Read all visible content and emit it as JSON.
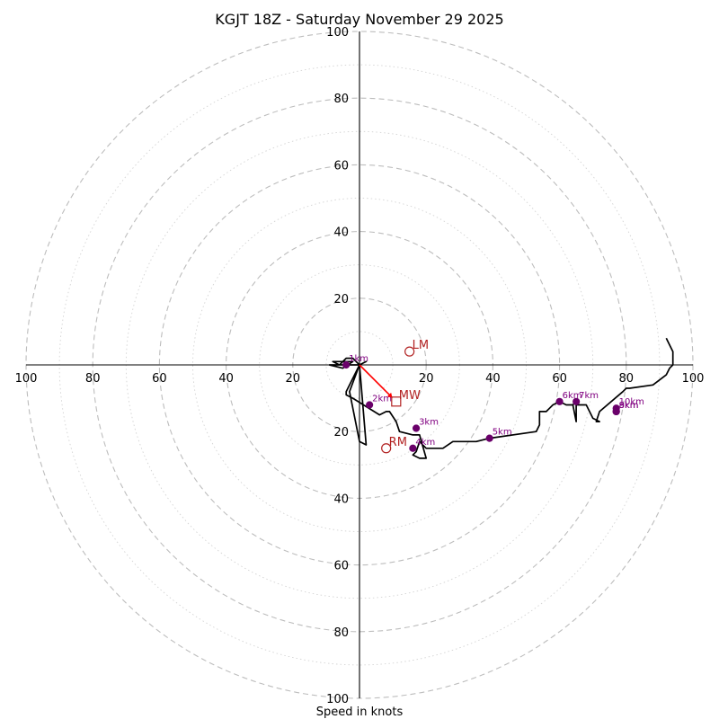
{
  "chart_data": {
    "type": "hodograph",
    "title": "KGJT 18Z - Saturday November 29 2025",
    "xlabel": "Speed in knots",
    "ylabel": "",
    "rmax": 100,
    "rings_major": [
      20,
      40,
      60,
      80,
      100
    ],
    "rings_minor": [
      10,
      30,
      50,
      70,
      90
    ],
    "tick_values": [
      20,
      40,
      60,
      80,
      100
    ],
    "grid": true,
    "trace_u": [
      92,
      94,
      94,
      93,
      92,
      88,
      81,
      80,
      79,
      72,
      71,
      72,
      70,
      68,
      65,
      65,
      64,
      64,
      65,
      64,
      62,
      60,
      58,
      57,
      56,
      54,
      54,
      53,
      39,
      35,
      32,
      30,
      28,
      25,
      24,
      20,
      18,
      17,
      16,
      18,
      20,
      18,
      16,
      12,
      11,
      9,
      8,
      6,
      -2,
      -4,
      -4,
      0,
      -2,
      -4,
      -6,
      -8,
      -2,
      -5,
      -9,
      0,
      2,
      0,
      -3,
      0,
      2,
      0
    ],
    "trace_v": [
      -8,
      -4,
      0,
      1,
      3,
      6,
      7,
      7,
      8,
      14,
      17,
      17,
      16,
      12,
      12,
      17,
      12,
      12,
      11,
      12,
      12,
      11,
      12,
      13,
      14,
      14,
      18,
      20,
      22,
      23,
      23,
      23,
      23,
      25,
      25,
      25,
      23,
      26,
      27,
      28,
      28,
      21,
      21,
      20,
      17,
      14,
      14,
      15,
      10,
      9,
      8,
      0,
      -2,
      -2,
      0,
      -1,
      -1,
      1,
      0,
      0,
      -1,
      0,
      8,
      23,
      24,
      0
    ],
    "height_markers": [
      {
        "label": "1km",
        "u": -4,
        "v": 0
      },
      {
        "label": "2km",
        "u": 3,
        "v": 12
      },
      {
        "label": "3km",
        "u": 17,
        "v": 19
      },
      {
        "label": "4km",
        "u": 16,
        "v": 25
      },
      {
        "label": "5km",
        "u": 39,
        "v": 22
      },
      {
        "label": "6km",
        "u": 60,
        "v": 11
      },
      {
        "label": "7km",
        "u": 65,
        "v": 11
      },
      {
        "label": "8km",
        "u": 77,
        "v": 14
      },
      {
        "label": "9km",
        "u": 77,
        "v": 14
      },
      {
        "label": "10km",
        "u": 77,
        "v": 13
      }
    ],
    "motions": [
      {
        "label": "LM",
        "u": 15,
        "v": -4,
        "marker": "circle"
      },
      {
        "label": "MW",
        "u": 11,
        "v": 11,
        "marker": "square"
      },
      {
        "label": "RM",
        "u": 8,
        "v": 25,
        "marker": "circle"
      }
    ],
    "arrow": {
      "u": 11,
      "v": 11,
      "color": "#ff0000"
    },
    "colors": {
      "trace": "#000000",
      "height_marker": "#6a006a",
      "height_label": "#800080",
      "motion": "#b22222",
      "arrow": "#ff0000"
    }
  }
}
